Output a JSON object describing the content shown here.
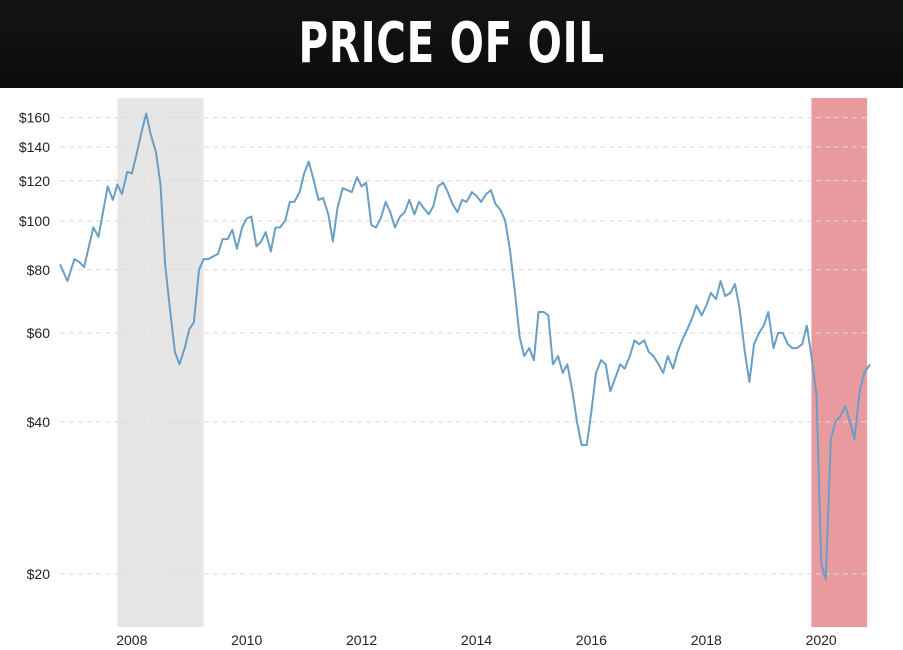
{
  "header": {
    "title": "PRICE OF OIL"
  },
  "chart_data": {
    "type": "line",
    "title": "PRICE OF OIL",
    "xlabel": "",
    "ylabel": "",
    "yscale": "log",
    "ylim": [
      16,
      175
    ],
    "xlim": [
      2006.75,
      2020.85
    ],
    "grid": "horizontal-dashed",
    "line_color": "#6a9ec4",
    "y_ticks": [
      {
        "value": 20,
        "label": "$20"
      },
      {
        "value": 40,
        "label": "$40"
      },
      {
        "value": 60,
        "label": "$60"
      },
      {
        "value": 80,
        "label": "$80"
      },
      {
        "value": 100,
        "label": "$100"
      },
      {
        "value": 120,
        "label": "$120"
      },
      {
        "value": 140,
        "label": "$140"
      },
      {
        "value": 160,
        "label": "$160"
      }
    ],
    "x_ticks": [
      {
        "value": 2008,
        "label": "2008"
      },
      {
        "value": 2010,
        "label": "2010"
      },
      {
        "value": 2012,
        "label": "2012"
      },
      {
        "value": 2014,
        "label": "2014"
      },
      {
        "value": 2016,
        "label": "2016"
      },
      {
        "value": 2018,
        "label": "2018"
      },
      {
        "value": 2020,
        "label": "2020"
      }
    ],
    "shaded_periods": [
      {
        "start": 2007.75,
        "end": 2009.25,
        "color": "#e6e6e6"
      },
      {
        "start": 2019.83,
        "end": 2020.8,
        "color": "#e99a9e"
      }
    ],
    "series": [
      {
        "values": [
          [
            2006.75,
            82
          ],
          [
            2006.88,
            76
          ],
          [
            2007.0,
            84
          ],
          [
            2007.08,
            83
          ],
          [
            2007.17,
            81
          ],
          [
            2007.33,
            97
          ],
          [
            2007.42,
            93
          ],
          [
            2007.58,
            117
          ],
          [
            2007.67,
            110
          ],
          [
            2007.75,
            118
          ],
          [
            2007.83,
            113
          ],
          [
            2007.92,
            125
          ],
          [
            2008.0,
            124
          ],
          [
            2008.08,
            135
          ],
          [
            2008.17,
            150
          ],
          [
            2008.25,
            163
          ],
          [
            2008.33,
            148
          ],
          [
            2008.42,
            137
          ],
          [
            2008.5,
            118
          ],
          [
            2008.58,
            82
          ],
          [
            2008.67,
            66
          ],
          [
            2008.75,
            55
          ],
          [
            2008.83,
            52
          ],
          [
            2008.92,
            56
          ],
          [
            2009.0,
            61
          ],
          [
            2009.08,
            63
          ],
          [
            2009.17,
            80
          ],
          [
            2009.25,
            84
          ],
          [
            2009.33,
            84
          ],
          [
            2009.5,
            86
          ],
          [
            2009.58,
            92
          ],
          [
            2009.67,
            92
          ],
          [
            2009.75,
            96
          ],
          [
            2009.83,
            88
          ],
          [
            2009.92,
            97
          ],
          [
            2010.0,
            101
          ],
          [
            2010.08,
            102
          ],
          [
            2010.17,
            89
          ],
          [
            2010.25,
            91
          ],
          [
            2010.33,
            95
          ],
          [
            2010.42,
            87
          ],
          [
            2010.5,
            97
          ],
          [
            2010.58,
            97
          ],
          [
            2010.67,
            100
          ],
          [
            2010.75,
            109
          ],
          [
            2010.83,
            109
          ],
          [
            2010.92,
            114
          ],
          [
            2011.0,
            124
          ],
          [
            2011.08,
            131
          ],
          [
            2011.17,
            120
          ],
          [
            2011.25,
            110
          ],
          [
            2011.33,
            111
          ],
          [
            2011.42,
            103
          ],
          [
            2011.5,
            91
          ],
          [
            2011.58,
            106
          ],
          [
            2011.67,
            116
          ],
          [
            2011.75,
            115
          ],
          [
            2011.83,
            114
          ],
          [
            2011.92,
            122
          ],
          [
            2012.0,
            117
          ],
          [
            2012.08,
            119
          ],
          [
            2012.17,
            98
          ],
          [
            2012.25,
            97
          ],
          [
            2012.33,
            101
          ],
          [
            2012.42,
            109
          ],
          [
            2012.5,
            104
          ],
          [
            2012.58,
            97
          ],
          [
            2012.67,
            102
          ],
          [
            2012.75,
            104
          ],
          [
            2012.83,
            110
          ],
          [
            2012.92,
            103
          ],
          [
            2013.0,
            109
          ],
          [
            2013.08,
            106
          ],
          [
            2013.17,
            103
          ],
          [
            2013.25,
            107
          ],
          [
            2013.33,
            117
          ],
          [
            2013.42,
            119
          ],
          [
            2013.5,
            114
          ],
          [
            2013.58,
            108
          ],
          [
            2013.67,
            104
          ],
          [
            2013.75,
            110
          ],
          [
            2013.83,
            109
          ],
          [
            2013.92,
            114
          ],
          [
            2014.0,
            112
          ],
          [
            2014.08,
            109
          ],
          [
            2014.17,
            113
          ],
          [
            2014.25,
            115
          ],
          [
            2014.33,
            108
          ],
          [
            2014.42,
            105
          ],
          [
            2014.5,
            100
          ],
          [
            2014.58,
            88
          ],
          [
            2014.67,
            72
          ],
          [
            2014.75,
            59
          ],
          [
            2014.83,
            54
          ],
          [
            2014.92,
            56
          ],
          [
            2015.0,
            53
          ],
          [
            2015.08,
            66
          ],
          [
            2015.17,
            66
          ],
          [
            2015.25,
            65
          ],
          [
            2015.33,
            52
          ],
          [
            2015.42,
            54
          ],
          [
            2015.5,
            50
          ],
          [
            2015.58,
            52
          ],
          [
            2015.67,
            46
          ],
          [
            2015.75,
            40
          ],
          [
            2015.83,
            36
          ],
          [
            2015.92,
            36
          ],
          [
            2016.0,
            42
          ],
          [
            2016.08,
            50
          ],
          [
            2016.17,
            53
          ],
          [
            2016.25,
            52
          ],
          [
            2016.33,
            46
          ],
          [
            2016.42,
            49
          ],
          [
            2016.5,
            52
          ],
          [
            2016.58,
            51
          ],
          [
            2016.67,
            54
          ],
          [
            2016.75,
            58
          ],
          [
            2016.83,
            57
          ],
          [
            2016.92,
            58
          ],
          [
            2017.0,
            55
          ],
          [
            2017.08,
            54
          ],
          [
            2017.17,
            52
          ],
          [
            2017.25,
            50
          ],
          [
            2017.33,
            54
          ],
          [
            2017.42,
            51
          ],
          [
            2017.5,
            55
          ],
          [
            2017.58,
            58
          ],
          [
            2017.67,
            61
          ],
          [
            2017.75,
            64
          ],
          [
            2017.83,
            68
          ],
          [
            2017.92,
            65
          ],
          [
            2018.0,
            68
          ],
          [
            2018.08,
            72
          ],
          [
            2018.17,
            70
          ],
          [
            2018.25,
            76
          ],
          [
            2018.33,
            71
          ],
          [
            2018.42,
            72
          ],
          [
            2018.5,
            75
          ],
          [
            2018.58,
            67
          ],
          [
            2018.67,
            55
          ],
          [
            2018.75,
            48
          ],
          [
            2018.83,
            57
          ],
          [
            2018.92,
            60
          ],
          [
            2019.0,
            62
          ],
          [
            2019.08,
            66
          ],
          [
            2019.17,
            56
          ],
          [
            2019.25,
            60
          ],
          [
            2019.33,
            60
          ],
          [
            2019.42,
            57
          ],
          [
            2019.5,
            56
          ],
          [
            2019.58,
            56
          ],
          [
            2019.67,
            57
          ],
          [
            2019.75,
            62
          ],
          [
            2019.83,
            54
          ],
          [
            2019.92,
            45
          ],
          [
            2020.0,
            21
          ],
          [
            2020.08,
            19.5
          ],
          [
            2020.17,
            37
          ],
          [
            2020.25,
            40
          ],
          [
            2020.33,
            41
          ],
          [
            2020.42,
            43
          ],
          [
            2020.5,
            40
          ],
          [
            2020.58,
            37
          ],
          [
            2020.67,
            46
          ],
          [
            2020.75,
            50
          ],
          [
            2020.85,
            52
          ]
        ]
      }
    ]
  }
}
